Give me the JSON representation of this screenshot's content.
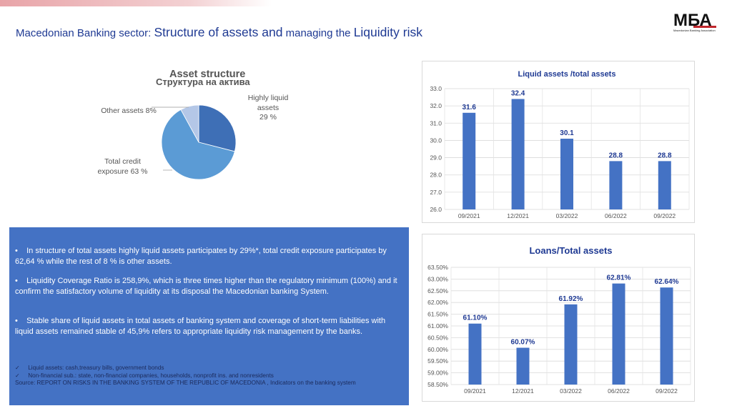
{
  "header": {
    "title_part1": "Macedonian Banking sector",
    "title_sep": ": ",
    "title_part2": "Structure of assets and",
    "title_part3": " managing the ",
    "title_part4": "Liquidity risk"
  },
  "logo": {
    "text": "МБА",
    "caption": "Macedonian Banking Association"
  },
  "colors": {
    "bar": "#4472c4",
    "box": "#4472c4",
    "title": "#1f3a93",
    "pie_dark": "#3e6fb6",
    "pie_mid": "#5b9bd5",
    "pie_light": "#b4c7e7"
  },
  "info_box": {
    "bullets": [
      "In structure of total assets highly liquid assets participates by 29%*, total credit exposure participates by 62,64 % while the rest of 8 % is other assets.",
      "Liquidity Coverage Ratio is 258,9%, which is three times higher than the regulatory minimum (100%) and it confirm the satisfactory volume of liquidity at its disposal the Macedonian banking System.",
      "Stable share of liquid assets in total assets of banking system and coverage of short-term liabilities with liquid assets remained stable of 45,9% refers to appropriate liquidity risk management by the banks."
    ],
    "bullet_symbol": "•",
    "check_symbol": "✓",
    "footnotes": [
      "Liquid assets: cash,treasury bills, government bonds",
      "Non-financial sub.: state, non-financial companies, households, nonprofit ins. and nonresidents"
    ],
    "source": "Source: REPORT ON RISKS IN THE BANKING SYSTEM OF THE REPUBLIC OF MACEDONIA , Indicators on the banking system"
  },
  "chart_data": [
    {
      "type": "pie",
      "title": "Asset structure",
      "subtitle": "Структура на актива",
      "slices": [
        {
          "label": "Highly liquid assets",
          "label_lines": [
            "Highly liquid",
            "assets",
            "29 %"
          ],
          "value": 29
        },
        {
          "label": "Total credit exposure",
          "label_lines": [
            "Total credit",
            "exposure 63 %"
          ],
          "value": 63
        },
        {
          "label": "Other assets",
          "label_lines": [
            "Other assets 8%"
          ],
          "value": 8
        }
      ]
    },
    {
      "type": "bar",
      "title": "Liquid assets /total assets",
      "categories": [
        "09/2021",
        "12/2021",
        "03/2022",
        "06/2022",
        "09/2022"
      ],
      "values": [
        31.6,
        32.4,
        30.1,
        28.8,
        28.8
      ],
      "data_labels": [
        "31.6",
        "32.4",
        "30.1",
        "28.8",
        "28.8"
      ],
      "ylim": [
        26.0,
        33.0
      ],
      "yticks": [
        "26.0",
        "27.0",
        "28.0",
        "29.0",
        "30.0",
        "31.0",
        "32.0",
        "33.0"
      ],
      "grid": true
    },
    {
      "type": "bar",
      "title": "Loans/Total assets",
      "categories": [
        "09/2021",
        "12/2021",
        "03/2022",
        "06/2022",
        "09/2022"
      ],
      "values": [
        61.1,
        60.07,
        61.92,
        62.81,
        62.64
      ],
      "data_labels": [
        "61.10%",
        "60.07%",
        "61.92%",
        "62.81%",
        "62.64%"
      ],
      "ylim": [
        58.5,
        63.5
      ],
      "yticks": [
        "58.50%",
        "59.00%",
        "59.50%",
        "60.00%",
        "60.50%",
        "61.00%",
        "61.50%",
        "62.00%",
        "62.50%",
        "63.00%",
        "63.50%"
      ],
      "grid": true
    }
  ]
}
